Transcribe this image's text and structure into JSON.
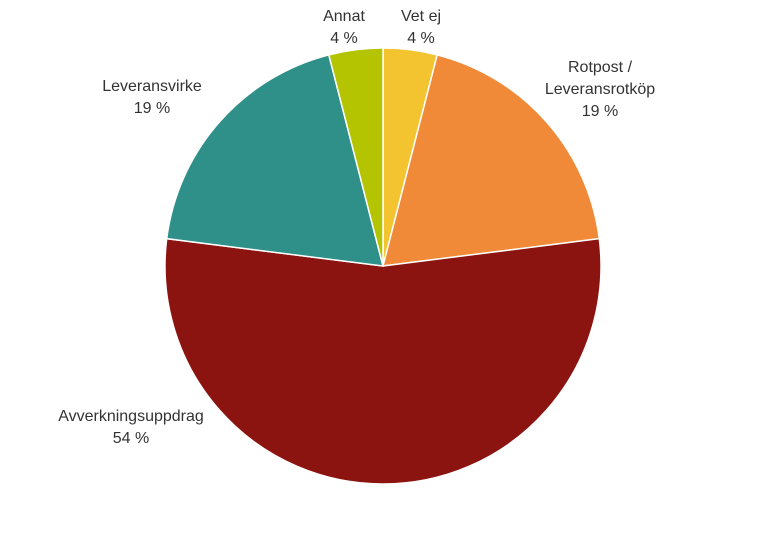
{
  "chart_data": {
    "type": "pie",
    "slices": [
      {
        "label": "Vet ej",
        "value": 4,
        "value_label": "4 %",
        "color": "#F4C430"
      },
      {
        "label": "Rotpost / Leveransrotköp",
        "value": 19,
        "value_label": "19 %",
        "color": "#F08A38"
      },
      {
        "label": "Avverkningsuppdrag",
        "value": 54,
        "value_label": "54 %",
        "color": "#8B1410"
      },
      {
        "label": "Leveransvirke",
        "value": 19,
        "value_label": "19 %",
        "color": "#2E9088"
      },
      {
        "label": "Annat",
        "value": 4,
        "value_label": "4 %",
        "color": "#B5C400"
      }
    ],
    "start": "12 o'clock",
    "direction": "clockwise"
  }
}
